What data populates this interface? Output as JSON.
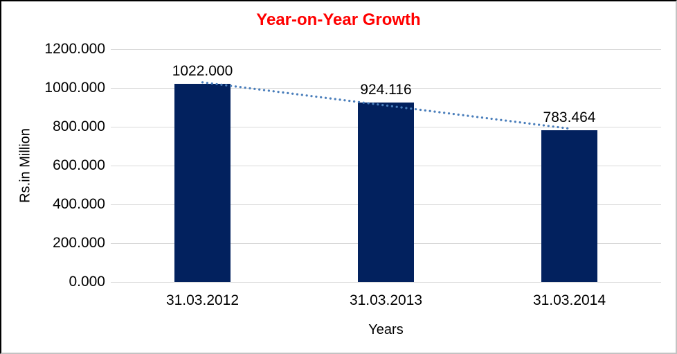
{
  "chart_data": {
    "type": "bar",
    "title": "Year-on-Year Growth",
    "categories": [
      "31.03.2012",
      "31.03.2013",
      "31.03.2014"
    ],
    "values": [
      1022.0,
      924.116,
      783.464
    ],
    "value_labels": [
      "1022.000",
      "924.116",
      "783.464"
    ],
    "xlabel": "Years",
    "ylabel": "Rs.in Million",
    "ylim": [
      0,
      1200
    ],
    "ytick_interval": 200,
    "ytick_labels": [
      "0.000",
      "200.000",
      "400.000",
      "600.000",
      "800.000",
      "1000.000",
      "1200.000"
    ],
    "grid": true,
    "legend": "none",
    "trendline": {
      "type": "linear",
      "style": "dotted"
    }
  },
  "colors": {
    "title": "#FF0000",
    "bar": "#02215E",
    "gridline": "#D9D9D9",
    "trendline": "#4A7EBB",
    "text": "#000000",
    "background": "#FFFFFF"
  }
}
